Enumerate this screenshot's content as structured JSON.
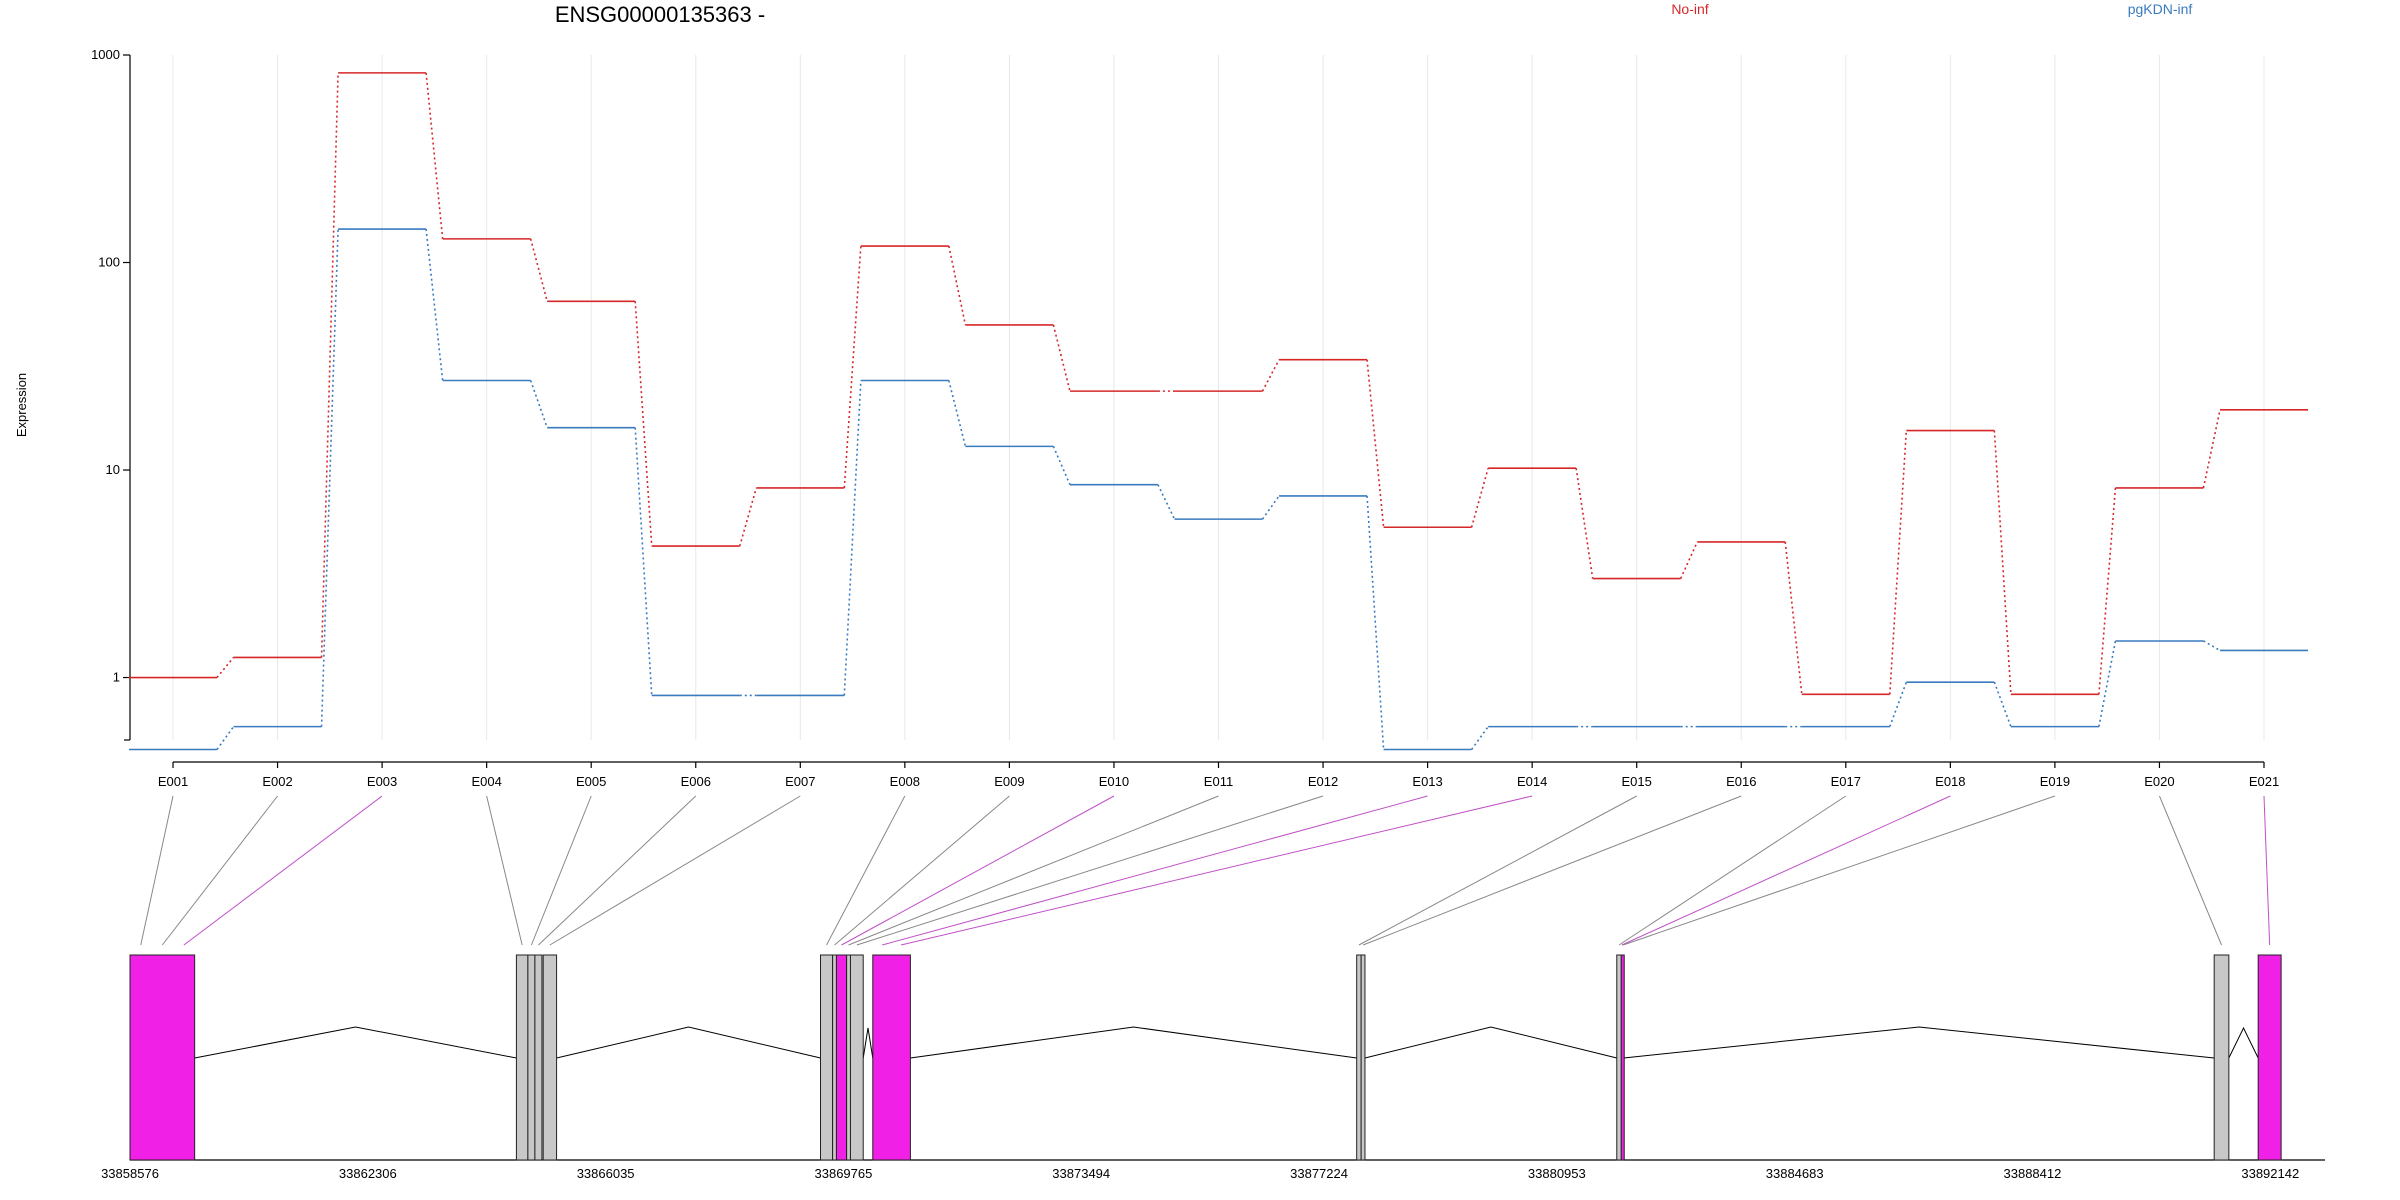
{
  "chart_data": {
    "type": "line",
    "title": "ENSG00000135363 -",
    "ylabel": "Expression",
    "xlabel": "",
    "yscale": "log",
    "ylim": [
      0.5,
      1000
    ],
    "yticks": [
      1,
      10,
      100,
      1000
    ],
    "ytick_labels": [
      "1",
      "10",
      "100",
      "1000"
    ],
    "grid": "vertical-light",
    "legend_placement": "top-right",
    "categories": [
      "E001",
      "E002",
      "E003",
      "E004",
      "E005",
      "E006",
      "E007",
      "E008",
      "E009",
      "E010",
      "E011",
      "E012",
      "E013",
      "E014",
      "E015",
      "E016",
      "E017",
      "E018",
      "E019",
      "E020",
      "E021"
    ],
    "series": [
      {
        "name": "No-inf",
        "color": "#d62728",
        "values": [
          1.0,
          1.25,
          820,
          130,
          65,
          4.3,
          8.2,
          120,
          50,
          24,
          24,
          34,
          5.3,
          10.2,
          3.0,
          4.5,
          0.83,
          15.5,
          0.83,
          8.2,
          19.5
        ]
      },
      {
        "name": "pgKDN-inf",
        "color": "#3a7bbf",
        "values": [
          0.45,
          0.58,
          145,
          27,
          16,
          0.82,
          0.82,
          27,
          13,
          8.5,
          5.8,
          7.5,
          0.45,
          0.58,
          0.58,
          0.58,
          0.58,
          0.95,
          0.58,
          1.5,
          1.35
        ]
      }
    ],
    "exon_highlight": [
      false,
      false,
      true,
      false,
      false,
      false,
      false,
      false,
      false,
      true,
      false,
      false,
      true,
      true,
      false,
      false,
      false,
      true,
      false,
      false,
      true
    ],
    "gene_model": {
      "xlim": [
        33858576,
        33893000
      ],
      "tick_labels": [
        "33858576",
        "33862306",
        "33866035",
        "33869765",
        "33873494",
        "33877224",
        "33880953",
        "33884683",
        "33888412",
        "33892142"
      ],
      "tick_values": [
        33858576,
        33862306,
        33866035,
        33869765,
        33873494,
        33877224,
        33880953,
        33884683,
        33888412,
        33892142
      ],
      "blocks": [
        {
          "exons": [
            "E001",
            "E002",
            "E003"
          ],
          "start": 33858576,
          "end": 33859590,
          "color": "#f020e6"
        },
        {
          "exons": [
            "E004"
          ],
          "start": 33864636,
          "end": 33864816,
          "color": "#c8c8c8"
        },
        {
          "exons": [
            "E005"
          ],
          "start": 33864816,
          "end": 33864926,
          "color": "#c8c8c8"
        },
        {
          "exons": [
            "E006"
          ],
          "start": 33864926,
          "end": 33865036,
          "color": "#c8c8c8"
        },
        {
          "exons": [
            "E007"
          ],
          "start": 33865056,
          "end": 33865266,
          "color": "#c8c8c8"
        },
        {
          "exons": [
            "E008"
          ],
          "start": 33869405,
          "end": 33869595,
          "color": "#c8c8c8"
        },
        {
          "exons": [
            "E009"
          ],
          "start": 33869595,
          "end": 33869655,
          "color": "#c8c8c8"
        },
        {
          "exons": [
            "E010"
          ],
          "start": 33869655,
          "end": 33869815,
          "color": "#f020e6"
        },
        {
          "exons": [
            "E011"
          ],
          "start": 33869815,
          "end": 33869875,
          "color": "#c8c8c8"
        },
        {
          "exons": [
            "E012"
          ],
          "start": 33869875,
          "end": 33870075,
          "color": "#c8c8c8"
        },
        {
          "exons": [
            "E013",
            "E014"
          ],
          "start": 33870225,
          "end": 33870815,
          "color": "#f020e6"
        },
        {
          "exons": [
            "E015"
          ],
          "start": 33877814,
          "end": 33877884,
          "color": "#c8c8c8"
        },
        {
          "exons": [
            "E016"
          ],
          "start": 33877884,
          "end": 33877944,
          "color": "#c8c8c8"
        },
        {
          "exons": [
            "E017"
          ],
          "start": 33881893,
          "end": 33881963,
          "color": "#c8c8c8"
        },
        {
          "exons": [
            "E018",
            "E019"
          ],
          "start": 33881963,
          "end": 33882003,
          "color": "#f020e6"
        },
        {
          "exons": [
            "E020"
          ],
          "start": 33891262,
          "end": 33891492,
          "color": "#c8c8c8"
        },
        {
          "exons": [
            "E021"
          ],
          "start": 33891952,
          "end": 33892312,
          "color": "#f020e6"
        }
      ]
    }
  }
}
